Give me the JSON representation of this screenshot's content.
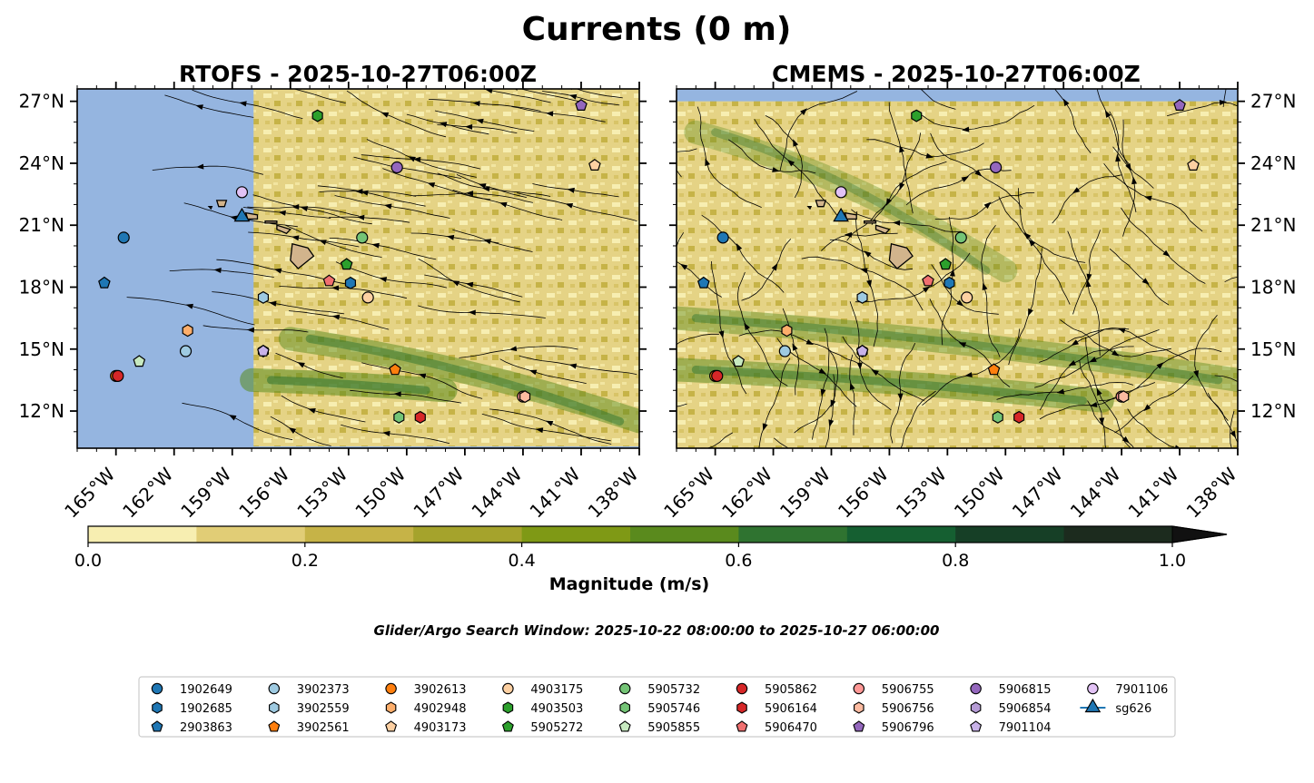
{
  "figure": {
    "suptitle": "Currents (0 m)",
    "search_window": "Glider/Argo Search Window: 2025-10-22 08:00:00 to 2025-10-27 06:00:00"
  },
  "chart_data": {
    "type": "map",
    "extent": {
      "lon": [
        -167,
        -138
      ],
      "lat": [
        10.2,
        27.6
      ]
    },
    "x_ticks": [
      -165,
      -162,
      -159,
      -156,
      -153,
      -150,
      -147,
      -144,
      -141,
      -138
    ],
    "x_tick_labels": [
      "165°W",
      "162°W",
      "159°W",
      "156°W",
      "153°W",
      "150°W",
      "147°W",
      "144°W",
      "141°W",
      "138°W"
    ],
    "y_ticks": [
      12,
      15,
      18,
      21,
      24,
      27
    ],
    "y_tick_labels": [
      "12°N",
      "15°N",
      "18°N",
      "21°N",
      "24°N",
      "27°N"
    ],
    "panels": [
      {
        "title": "RTOFS - 2025-10-27T06:00Z",
        "model": "RTOFS",
        "data_lon_min": -157.9,
        "data_lat_max": 27.6
      },
      {
        "title": "CMEMS - 2025-10-27T06:00Z",
        "model": "CMEMS",
        "data_lon_min": -167,
        "data_lat_max": 27.0
      }
    ],
    "colorbar": {
      "label": "Magnitude (m/s)",
      "range": [
        0.0,
        1.0
      ],
      "levels": [
        0.0,
        0.1,
        0.2,
        0.3,
        0.4,
        0.5,
        0.6,
        0.7,
        0.8,
        0.9,
        1.0
      ],
      "colors": [
        "#f7eeb1",
        "#e1cd76",
        "#c6b347",
        "#a5a32c",
        "#7f9915",
        "#5a8a1d",
        "#2f7330",
        "#155f31",
        "#163f26",
        "#1c2b1e"
      ],
      "tick_labels": [
        "0.0",
        "0.2",
        "0.4",
        "0.6",
        "0.8",
        "1.0"
      ],
      "extend": "max"
    },
    "land_color": "#d2b48c",
    "nodata_color": "#95b5e0",
    "platforms": [
      {
        "id": "1902649",
        "type": "argo",
        "marker": "circle",
        "color": "#1f77b4",
        "lon": -164.6,
        "lat": 20.4
      },
      {
        "id": "1902685",
        "type": "argo",
        "marker": "hexagon",
        "color": "#1f77b4",
        "lon": -152.9,
        "lat": 18.2
      },
      {
        "id": "2903863",
        "type": "argo",
        "marker": "pentagon",
        "color": "#1f77b4",
        "lon": -165.6,
        "lat": 18.2
      },
      {
        "id": "3902373",
        "type": "argo",
        "marker": "circle",
        "color": "#9ecae1",
        "lon": -161.4,
        "lat": 14.9
      },
      {
        "id": "3902559",
        "type": "argo",
        "marker": "hexagon",
        "color": "#9ecae1",
        "lon": -157.4,
        "lat": 17.5
      },
      {
        "id": "3902561",
        "type": "argo",
        "marker": "pentagon",
        "color": "#ff7f0e",
        "lon": -150.6,
        "lat": 14.0
      },
      {
        "id": "3902613",
        "type": "argo",
        "marker": "circle",
        "color": "#ff7f0e",
        "lon": -165.0,
        "lat": 13.7
      },
      {
        "id": "4902948",
        "type": "argo",
        "marker": "hexagon",
        "color": "#fdae6b",
        "lon": -161.3,
        "lat": 15.9
      },
      {
        "id": "4903173",
        "type": "argo",
        "marker": "pentagon",
        "color": "#fdd0a2",
        "lon": -140.3,
        "lat": 23.9
      },
      {
        "id": "4903175",
        "type": "argo",
        "marker": "circle",
        "color": "#fdd0a2",
        "lon": -152.0,
        "lat": 17.5
      },
      {
        "id": "4903503",
        "type": "argo",
        "marker": "hexagon",
        "color": "#2ca02c",
        "lon": -154.6,
        "lat": 26.3
      },
      {
        "id": "5905272",
        "type": "argo",
        "marker": "pentagon",
        "color": "#2ca02c",
        "lon": -153.1,
        "lat": 19.1
      },
      {
        "id": "5905732",
        "type": "argo",
        "marker": "circle",
        "color": "#74c476",
        "lon": -152.3,
        "lat": 20.4
      },
      {
        "id": "5905746",
        "type": "argo",
        "marker": "hexagon",
        "color": "#74c476",
        "lon": -150.4,
        "lat": 11.7
      },
      {
        "id": "5905855",
        "type": "argo",
        "marker": "pentagon",
        "color": "#c7e9c0",
        "lon": -163.8,
        "lat": 14.4
      },
      {
        "id": "5905862",
        "type": "argo",
        "marker": "circle",
        "color": "#d62728",
        "lon": -164.9,
        "lat": 13.7
      },
      {
        "id": "5906164",
        "type": "argo",
        "marker": "hexagon",
        "color": "#d62728",
        "lon": -149.3,
        "lat": 11.7
      },
      {
        "id": "5906470",
        "type": "argo",
        "marker": "pentagon",
        "color": "#f07070",
        "lon": -154.0,
        "lat": 18.3
      },
      {
        "id": "5906755",
        "type": "argo",
        "marker": "circle",
        "color": "#ff9896",
        "lon": -144.0,
        "lat": 12.7
      },
      {
        "id": "5906756",
        "type": "argo",
        "marker": "hexagon",
        "color": "#fcbba1",
        "lon": -143.9,
        "lat": 12.7
      },
      {
        "id": "5906796",
        "type": "argo",
        "marker": "pentagon",
        "color": "#9467bd",
        "lon": -141.0,
        "lat": 26.8
      },
      {
        "id": "5906815",
        "type": "argo",
        "marker": "circle",
        "color": "#9467bd",
        "lon": -150.5,
        "lat": 23.8
      },
      {
        "id": "5906854",
        "type": "argo",
        "marker": "hexagon",
        "color": "#b59bd5",
        "lon": -157.4,
        "lat": 14.9
      },
      {
        "id": "7901104",
        "type": "argo",
        "marker": "pentagon",
        "color": "#c8b2e8",
        "lon": -157.4,
        "lat": 14.9
      },
      {
        "id": "7901106",
        "type": "argo",
        "marker": "circle",
        "color": "#e2c2f5",
        "lon": -158.5,
        "lat": 22.6
      },
      {
        "id": "sg626",
        "type": "glider",
        "marker": "triangle",
        "color": "#1f77b4",
        "lon": -158.5,
        "lat": 21.4
      }
    ]
  },
  "legend": {
    "columns": [
      [
        "1902649",
        "1902685",
        "2903863"
      ],
      [
        "3902373",
        "3902559",
        "3902561"
      ],
      [
        "3902613",
        "4902948",
        "4903173"
      ],
      [
        "4903175",
        "4903503",
        "5905272"
      ],
      [
        "5905732",
        "5905746",
        "5905855"
      ],
      [
        "5905862",
        "5906164",
        "5906470"
      ],
      [
        "5906755",
        "5906756",
        "5906796"
      ],
      [
        "5906815",
        "5906854",
        "7901104"
      ],
      [
        "7901106",
        "sg626"
      ]
    ]
  }
}
